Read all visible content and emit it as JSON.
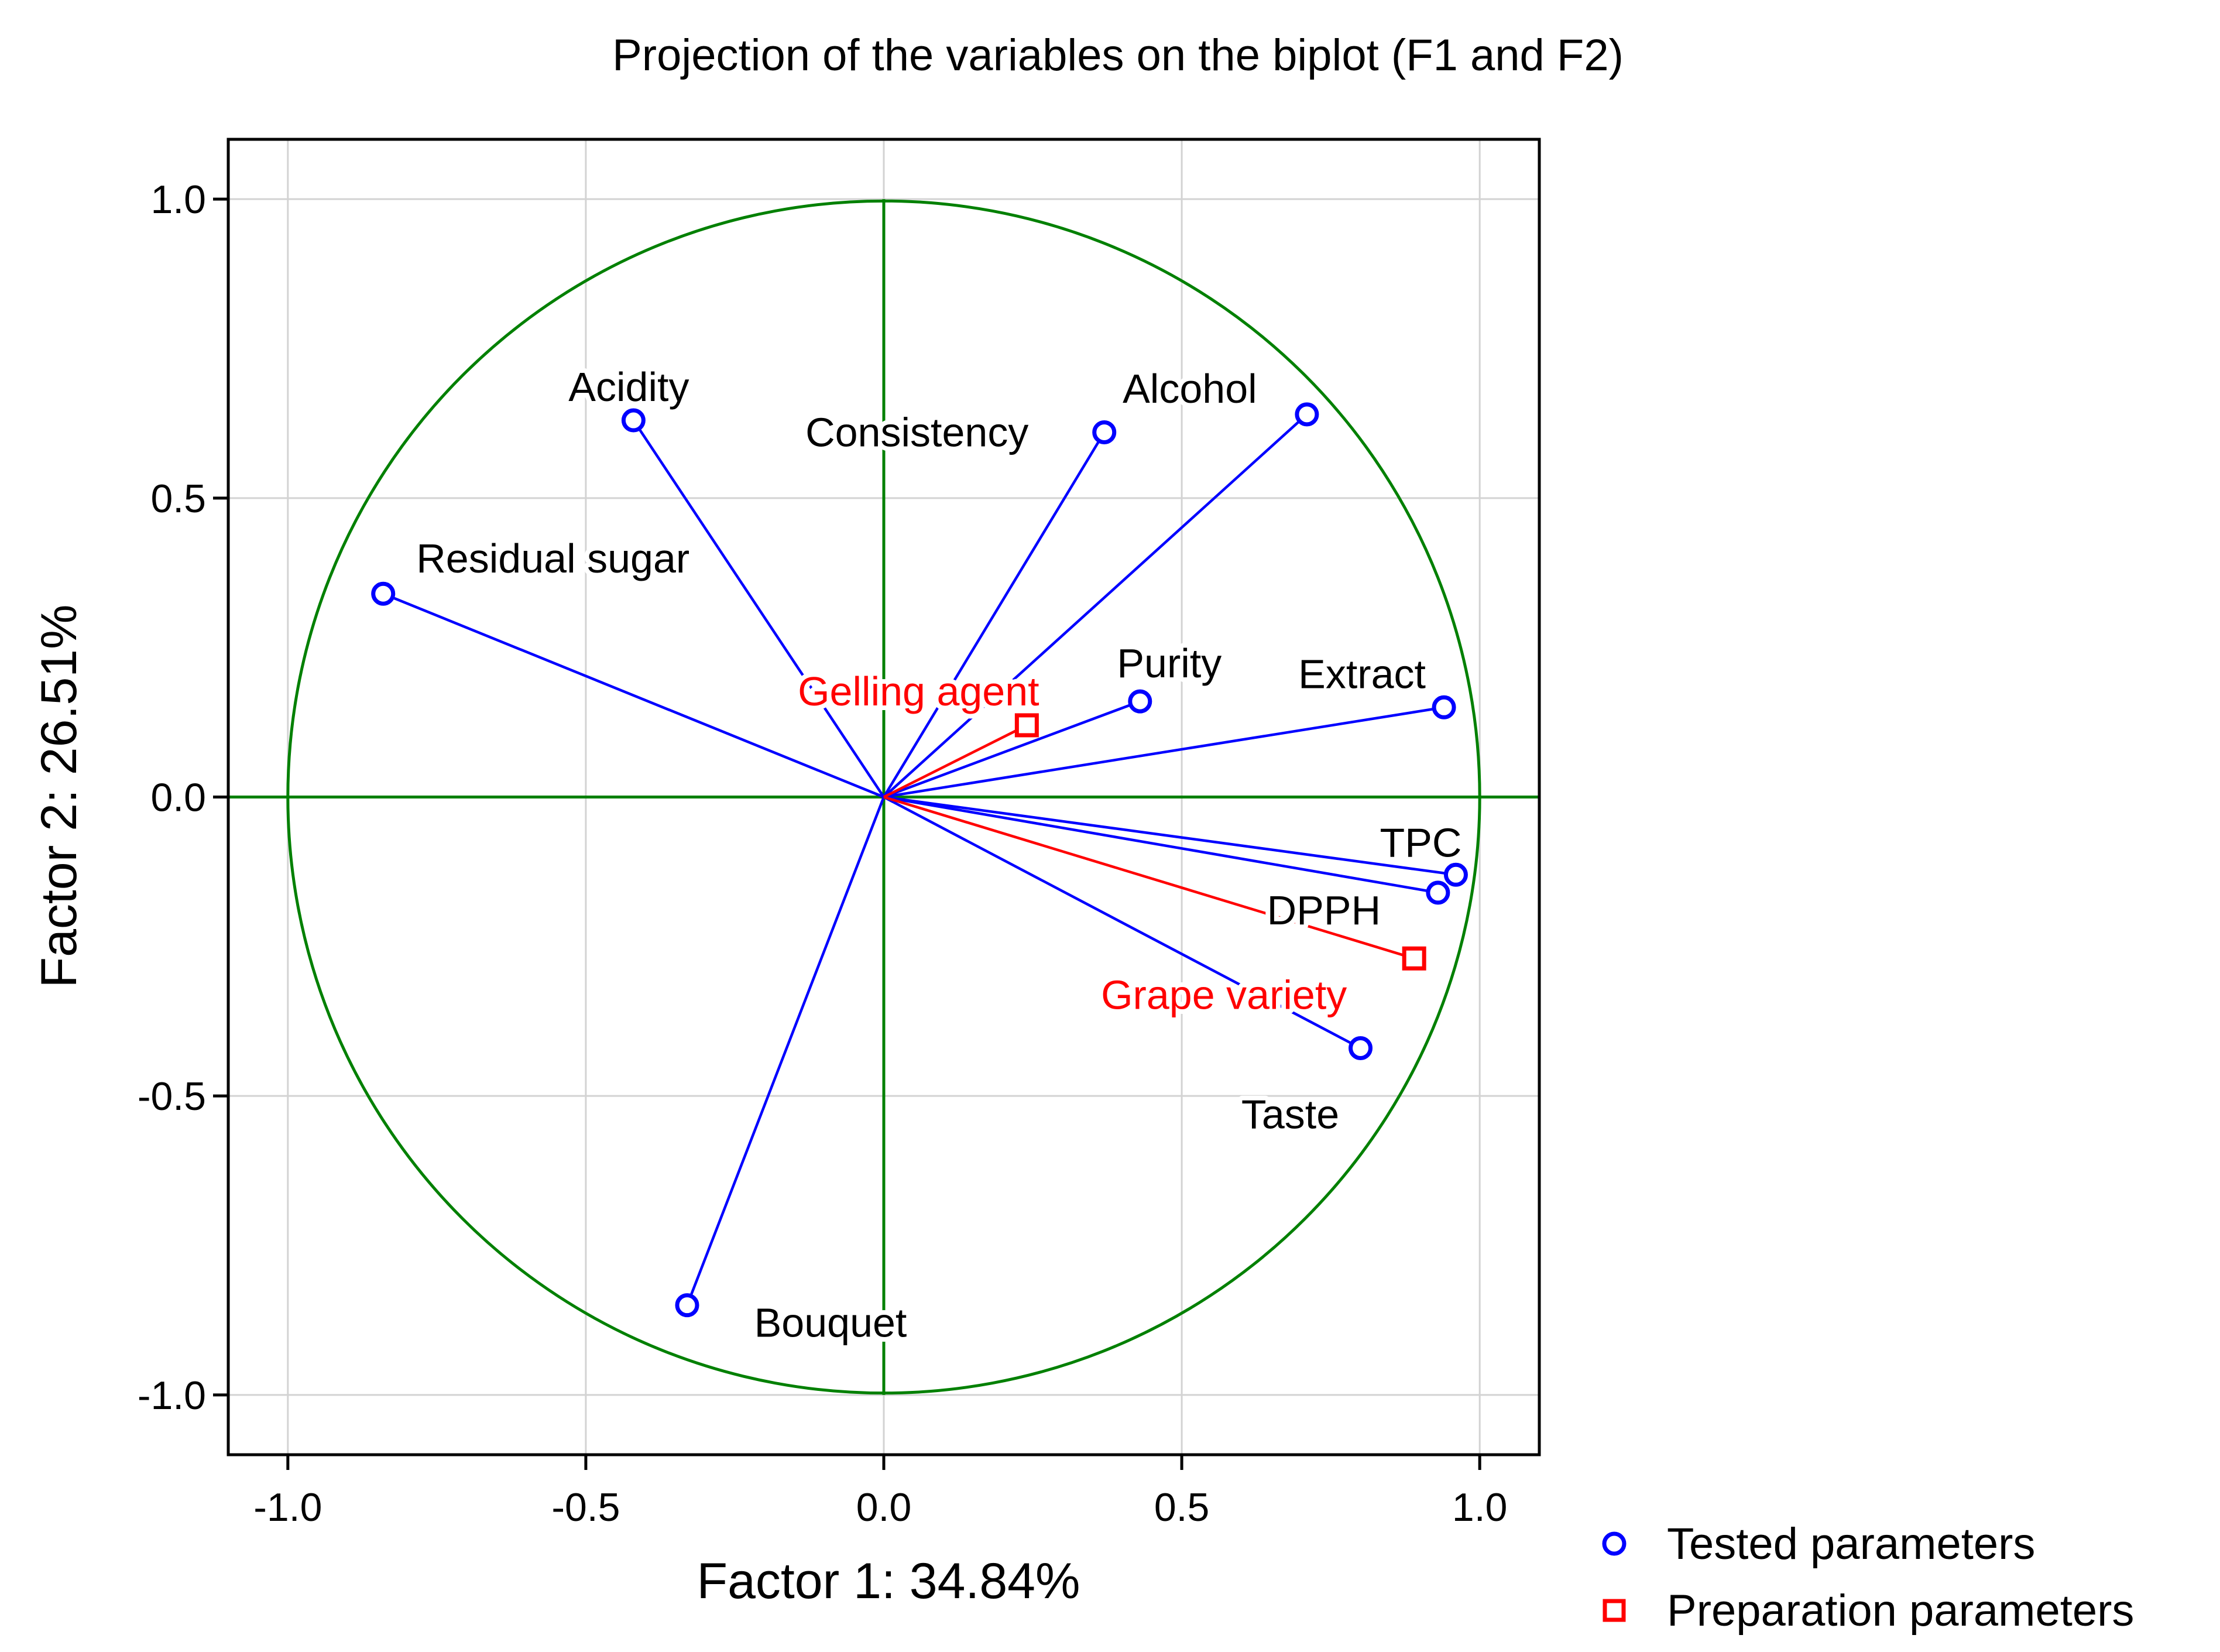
{
  "chart_data": {
    "type": "scatter",
    "subtype": "pca-correlation-circle",
    "title": "Projection of the variables on the biplot (F1 and F2)",
    "xlabel": "Factor 1: 34.84%",
    "ylabel": "Factor 2: 26.51%",
    "xlim": [
      -1.1,
      1.1
    ],
    "ylim": [
      -1.1,
      1.1
    ],
    "xticks": [
      -1.0,
      -0.5,
      0.0,
      0.5,
      1.0
    ],
    "yticks": [
      -1.0,
      -0.5,
      0.0,
      0.5,
      1.0
    ],
    "xtick_labels": [
      "-1.0",
      "-0.5",
      "0.0",
      "0.5",
      "1.0"
    ],
    "ytick_labels": [
      "1.0",
      "0.5",
      "0.0",
      "-0.5",
      "-1.0"
    ],
    "ytick_values": [
      1.0,
      0.5,
      0.0,
      -0.5,
      -1.0
    ],
    "grid": true,
    "unit_circle": true,
    "legend_position": "bottom-right outside",
    "colors": {
      "tested": "#0000ff",
      "preparation": "#ff0000",
      "circle": "#008000",
      "grid": "#d3d3d3"
    },
    "series": [
      {
        "name": "Tested parameters",
        "marker": "circle",
        "color": "#0000ff",
        "points": [
          {
            "label": "Acidity",
            "x": -0.42,
            "y": 0.63
          },
          {
            "label": "Consistency",
            "x": 0.37,
            "y": 0.61
          },
          {
            "label": "Alcohol",
            "x": 0.71,
            "y": 0.64
          },
          {
            "label": "Residual sugar",
            "x": -0.84,
            "y": 0.34
          },
          {
            "label": "Purity",
            "x": 0.43,
            "y": 0.16
          },
          {
            "label": "Extract",
            "x": 0.94,
            "y": 0.15
          },
          {
            "label": "TPC",
            "x": 0.96,
            "y": -0.13
          },
          {
            "label": "DPPH",
            "x": 0.93,
            "y": -0.16
          },
          {
            "label": "Taste",
            "x": 0.8,
            "y": -0.42
          },
          {
            "label": "Bouquet",
            "x": -0.33,
            "y": -0.85
          }
        ]
      },
      {
        "name": "Preparation parameters",
        "marker": "square",
        "color": "#ff0000",
        "points": [
          {
            "label": "Gelling agent",
            "x": 0.24,
            "y": 0.12
          },
          {
            "label": "Grape variety",
            "x": 0.89,
            "y": -0.27
          }
        ]
      }
    ]
  }
}
